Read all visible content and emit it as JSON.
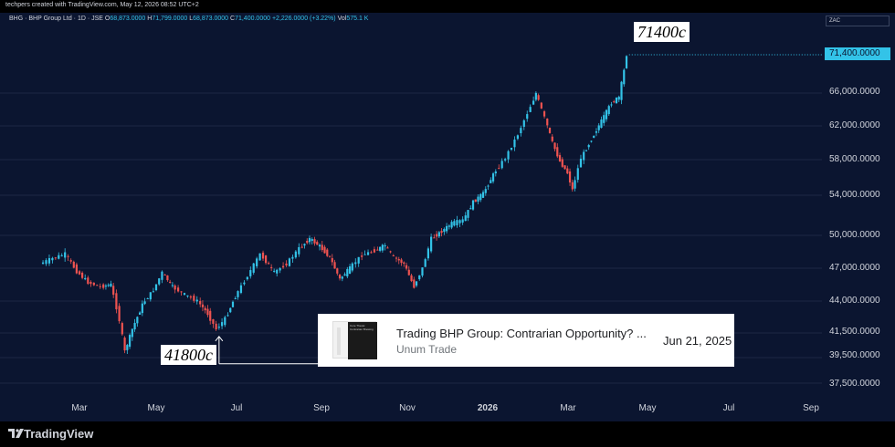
{
  "header": {
    "attribution": "techpers created with TradingView.com, May 12, 2026 08:52 UTC+2"
  },
  "legend": {
    "name": "BHG · BHP Group Ltd · 1D · JSE",
    "open_label": "O",
    "open": "68,873.0000",
    "high_label": "H",
    "high": "71,799.0000",
    "low_label": "L",
    "low": "68,873.0000",
    "close_label": "C",
    "close": "71,400.0000",
    "change": "+2,226.0000 (+3.22%)",
    "vol_label": "Vol",
    "vol": "575.1 K"
  },
  "currency_selector": "ZAC",
  "last_price_label": "71,400.0000",
  "annotations": {
    "high_callout": "71400c",
    "low_callout": "41800c"
  },
  "news_card": {
    "title": "Trading BHP Group: Contrarian Opportunity? ...",
    "source": "Unum Trade",
    "date": "Jun 21, 2025",
    "thumbnail_heading": "Core Thesis: Contrarian Brewing"
  },
  "footer": {
    "brand": "TradingView"
  },
  "colors": {
    "background": "#0b1530",
    "up": "#33c3e8",
    "down": "#ef5350",
    "last_price": "#33c3e8",
    "grid": "#1c2743"
  },
  "chart_data": {
    "type": "candlestick",
    "symbol": "BHG",
    "interval": "1D",
    "y_axis_ticks": [
      "71,400.0000",
      "66,000.0000",
      "62,000.0000",
      "58,000.0000",
      "54,000.0000",
      "50,000.0000",
      "47,000.0000",
      "44,000.0000",
      "41,500.0000",
      "39,500.0000",
      "37,500.0000"
    ],
    "y_axis_values": [
      66000,
      62000,
      58000,
      54000,
      50000,
      47000,
      44000,
      41500,
      39500,
      37500
    ],
    "x_axis_ticks": [
      {
        "label": "Mar",
        "bold": false
      },
      {
        "label": "May",
        "bold": false
      },
      {
        "label": "Jul",
        "bold": false
      },
      {
        "label": "Sep",
        "bold": false
      },
      {
        "label": "Nov",
        "bold": false
      },
      {
        "label": "2026",
        "bold": true
      },
      {
        "label": "Mar",
        "bold": false
      },
      {
        "label": "May",
        "bold": false
      },
      {
        "label": "Jul",
        "bold": false
      },
      {
        "label": "Sep",
        "bold": false
      }
    ],
    "grid": true,
    "close_path": [
      [
        "2025-01-31",
        47400
      ],
      [
        "2025-02-10",
        47900
      ],
      [
        "2025-02-20",
        48300
      ],
      [
        "2025-03-01",
        46700
      ],
      [
        "2025-03-10",
        45700
      ],
      [
        "2025-03-20",
        45300
      ],
      [
        "2025-03-28",
        45500
      ],
      [
        "2025-04-04",
        42500
      ],
      [
        "2025-04-08",
        40000
      ],
      [
        "2025-04-14",
        41800
      ],
      [
        "2025-04-22",
        43700
      ],
      [
        "2025-05-01",
        45000
      ],
      [
        "2025-05-08",
        46600
      ],
      [
        "2025-05-16",
        45300
      ],
      [
        "2025-05-26",
        44600
      ],
      [
        "2025-06-05",
        44000
      ],
      [
        "2025-06-13",
        43000
      ],
      [
        "2025-06-20",
        41800
      ],
      [
        "2025-06-27",
        42600
      ],
      [
        "2025-07-05",
        44400
      ],
      [
        "2025-07-15",
        46300
      ],
      [
        "2025-07-25",
        48300
      ],
      [
        "2025-08-05",
        46600
      ],
      [
        "2025-08-15",
        47400
      ],
      [
        "2025-08-25",
        48800
      ],
      [
        "2025-09-02",
        49700
      ],
      [
        "2025-09-10",
        49000
      ],
      [
        "2025-09-18",
        48000
      ],
      [
        "2025-09-26",
        46000
      ],
      [
        "2025-10-04",
        47000
      ],
      [
        "2025-10-14",
        48200
      ],
      [
        "2025-10-24",
        48600
      ],
      [
        "2025-11-01",
        49100
      ],
      [
        "2025-11-08",
        48000
      ],
      [
        "2025-11-16",
        47400
      ],
      [
        "2025-11-24",
        45300
      ],
      [
        "2025-12-01",
        47000
      ],
      [
        "2025-12-08",
        49700
      ],
      [
        "2025-12-16",
        50400
      ],
      [
        "2025-12-24",
        51200
      ],
      [
        "2026-01-02",
        51500
      ],
      [
        "2026-01-10",
        53300
      ],
      [
        "2026-01-18",
        54200
      ],
      [
        "2026-01-26",
        56300
      ],
      [
        "2026-02-05",
        58200
      ],
      [
        "2026-02-15",
        61000
      ],
      [
        "2026-02-25",
        64400
      ],
      [
        "2026-03-01",
        66000
      ],
      [
        "2026-03-08",
        63000
      ],
      [
        "2026-03-14",
        60000
      ],
      [
        "2026-03-20",
        57800
      ],
      [
        "2026-03-26",
        56500
      ],
      [
        "2026-03-30",
        54600
      ],
      [
        "2026-04-06",
        58200
      ],
      [
        "2026-04-14",
        60400
      ],
      [
        "2026-04-22",
        62600
      ],
      [
        "2026-04-30",
        64800
      ],
      [
        "2026-05-06",
        65500
      ],
      [
        "2026-05-10",
        69200
      ],
      [
        "2026-05-12",
        71400
      ]
    ],
    "annotations": [
      {
        "label": "71400c",
        "date": "2026-05-12",
        "value": 71400
      },
      {
        "label": "41800c",
        "date": "2025-06-20",
        "value": 41800
      }
    ],
    "last_close": 71400
  }
}
